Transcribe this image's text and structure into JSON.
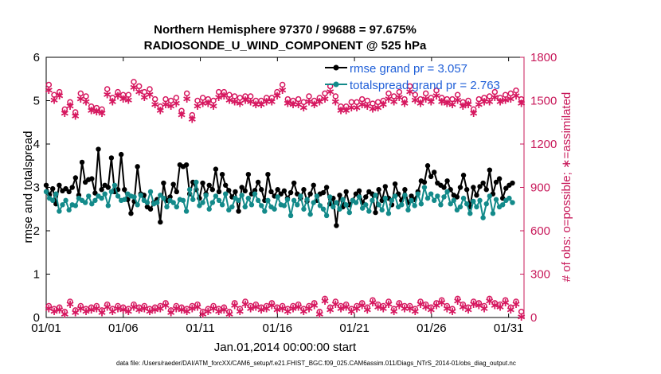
{
  "chart_data": {
    "type": "line",
    "title_line1": "Northern Hemisphere 97370 / 99688 = 97.675%",
    "title_line2": "RADIOSONDE_U_WIND_COMPONENT @ 525 hPa",
    "xlabel": "Jan.01,2014 00:00:00 start",
    "ylabel_left": "rmse and totalspread",
    "ylabel_right": "# of obs: o=possible; ∗=assimilated",
    "x_tick_labels": [
      "01/01",
      "01/06",
      "01/11",
      "01/16",
      "01/21",
      "01/26",
      "01/31"
    ],
    "x_tick_days": [
      1,
      6,
      11,
      16,
      21,
      26,
      31
    ],
    "xlim": [
      1,
      32
    ],
    "ylim_left": [
      0,
      6
    ],
    "yticks_left": [
      "0",
      "1",
      "2",
      "3",
      "4",
      "5",
      "6"
    ],
    "ylim_right": [
      0,
      1800
    ],
    "yticks_right": [
      "0",
      "300",
      "600",
      "900",
      "1200",
      "1500",
      "1800"
    ],
    "legend": [
      "rmse grand pr = 3.057",
      "totalspread grand pr = 2.763"
    ],
    "footnote": "data file: /Users/raeder/DAI/ATM_forcXX/CAM6_setup/f.e21.FHIST_BGC.f09_025.CAM6assim.011/Diags_NTrS_2014-01/obs_diag_output.nc",
    "colors": {
      "rmse": "#000000",
      "spread": "#138a8a",
      "obs": "#d6175f",
      "legend_text": "#1f5fd8",
      "right_axis": "#c8195a"
    },
    "series": [
      {
        "name": "rmse",
        "values": [
          3.05,
          2.83,
          2.97,
          2.62,
          3.05,
          2.92,
          2.97,
          2.9,
          3.0,
          3.22,
          2.82,
          3.58,
          3.12,
          3.18,
          3.2,
          2.87,
          3.88,
          2.95,
          3.05,
          3.0,
          3.68,
          2.9,
          2.95,
          3.76,
          2.95,
          2.72,
          2.4,
          2.68,
          3.48,
          2.85,
          2.82,
          2.55,
          2.5,
          2.65,
          2.72,
          2.2,
          3.1,
          2.7,
          2.78,
          3.07,
          2.9,
          3.52,
          3.48,
          3.52,
          2.85,
          3.12,
          2.95,
          2.75,
          3.1,
          2.85,
          3.05,
          2.95,
          3.42,
          2.9,
          3.3,
          3.05,
          2.93,
          2.78,
          2.9,
          2.45,
          3.0,
          2.92,
          3.3,
          2.85,
          2.93,
          3.12,
          2.95,
          2.7,
          3.3,
          2.9,
          2.8,
          2.95,
          2.85,
          2.92,
          2.75,
          2.88,
          3.1,
          2.85,
          2.75,
          2.95,
          2.68,
          2.85,
          3.05,
          2.7,
          2.85,
          2.88,
          3.0,
          2.62,
          2.75,
          2.12,
          2.82,
          2.55,
          2.9,
          2.6,
          2.7,
          2.85,
          2.92,
          2.65,
          2.78,
          2.9,
          2.85,
          2.42,
          2.95,
          2.7,
          3.02,
          2.75,
          2.6,
          3.08,
          2.85,
          2.7,
          2.95,
          2.65,
          2.8,
          2.72,
          2.9,
          3.15,
          3.12,
          3.5,
          3.25,
          3.35,
          3.1,
          3.05,
          3.0,
          3.15,
          2.95,
          2.82,
          2.78,
          3.0,
          3.28,
          2.95,
          2.55,
          3.0,
          2.82,
          3.02,
          3.1,
          2.95,
          3.4,
          2.85,
          3.12,
          3.2,
          2.75,
          2.98,
          3.05,
          3.1
        ]
      },
      {
        "name": "totalspread",
        "values": [
          2.9,
          2.75,
          2.7,
          2.85,
          2.45,
          2.6,
          2.7,
          2.48,
          2.6,
          2.58,
          2.75,
          2.7,
          2.65,
          2.8,
          2.62,
          2.7,
          2.8,
          2.75,
          2.85,
          2.58,
          2.9,
          3.05,
          2.8,
          2.7,
          2.72,
          2.85,
          2.8,
          2.78,
          2.6,
          2.82,
          2.7,
          2.65,
          2.9,
          2.62,
          2.65,
          2.82,
          2.75,
          2.55,
          2.7,
          2.65,
          2.55,
          2.72,
          2.7,
          2.45,
          2.95,
          2.72,
          3.12,
          2.58,
          2.65,
          2.82,
          2.5,
          2.65,
          2.8,
          2.7,
          2.6,
          2.85,
          2.48,
          2.55,
          2.75,
          2.7,
          2.82,
          2.55,
          2.75,
          2.6,
          2.85,
          2.7,
          2.58,
          2.45,
          2.7,
          2.55,
          2.5,
          2.78,
          2.6,
          2.58,
          2.72,
          2.35,
          2.7,
          2.6,
          2.8,
          2.5,
          2.72,
          2.38,
          2.65,
          2.8,
          2.58,
          2.5,
          2.35,
          2.78,
          2.55,
          2.65,
          2.5,
          2.72,
          2.6,
          2.42,
          2.7,
          2.65,
          2.78,
          2.52,
          2.6,
          2.45,
          2.7,
          2.82,
          2.6,
          2.48,
          2.75,
          2.4,
          2.7,
          2.8,
          2.55,
          2.6,
          2.82,
          2.48,
          2.7,
          2.58,
          2.85,
          2.62,
          3.0,
          2.75,
          2.85,
          2.7,
          2.8,
          2.6,
          2.78,
          2.9,
          2.62,
          2.7,
          2.48,
          2.55,
          2.75,
          2.62,
          2.4,
          2.68,
          2.55,
          2.7,
          2.3,
          2.62,
          2.8,
          2.4,
          2.72,
          2.55,
          2.6,
          2.7,
          2.75,
          2.65
        ]
      },
      {
        "name": "obs_possible",
        "values": [
          1610,
          1540,
          1560,
          1440,
          1490,
          1420,
          1550,
          1530,
          1460,
          1450,
          1440,
          1580,
          1520,
          1560,
          1540,
          1540,
          1630,
          1600,
          1560,
          1580,
          1510,
          1460,
          1510,
          1500,
          1520,
          1430,
          1550,
          1400,
          1500,
          1520,
          1510,
          1500,
          1560,
          1560,
          1540,
          1530,
          1520,
          1530,
          1530,
          1500,
          1500,
          1520,
          1520,
          1560,
          1610,
          1510,
          1500,
          1510,
          1490,
          1530,
          1500,
          1520,
          1550,
          1600,
          1530,
          1460,
          1460,
          1490,
          1490,
          1510,
          1500,
          1480,
          1490,
          1500,
          1550,
          1530,
          1560,
          1510,
          1600,
          1540,
          1510,
          1550,
          1520,
          1570,
          1520,
          1510,
          1510,
          1540,
          1490,
          1500,
          1440,
          1510,
          1520,
          1530,
          1560,
          1520,
          1540,
          1550,
          1570,
          1510
        ],
        "note": "symbol o, ~2 samples per day"
      },
      {
        "name": "obs_assimilated",
        "values": [
          1580,
          1510,
          1540,
          1420,
          1470,
          1400,
          1520,
          1500,
          1440,
          1430,
          1420,
          1550,
          1500,
          1540,
          1520,
          1510,
          1600,
          1570,
          1530,
          1550,
          1480,
          1440,
          1480,
          1470,
          1490,
          1410,
          1520,
          1380,
          1470,
          1490,
          1490,
          1470,
          1530,
          1540,
          1510,
          1500,
          1490,
          1510,
          1500,
          1480,
          1480,
          1500,
          1500,
          1540,
          1580,
          1490,
          1480,
          1480,
          1460,
          1500,
          1480,
          1500,
          1520,
          1570,
          1500,
          1440,
          1440,
          1460,
          1460,
          1480,
          1470,
          1450,
          1460,
          1480,
          1520,
          1500,
          1530,
          1490,
          1570,
          1510,
          1490,
          1520,
          1500,
          1540,
          1500,
          1490,
          1480,
          1510,
          1470,
          1480,
          1420,
          1480,
          1500,
          1500,
          1530,
          1500,
          1510,
          1520,
          1540,
          1490
        ],
        "note": "symbol *, ~2 samples per day"
      },
      {
        "name": "obs_low_possible",
        "values": [
          80,
          60,
          70,
          40,
          110,
          50,
          80,
          60,
          70,
          80,
          50,
          90,
          60,
          80,
          70,
          60,
          90,
          70,
          80,
          60,
          70,
          80,
          100,
          50,
          80,
          70,
          60,
          80,
          90,
          40,
          60,
          80,
          60,
          70,
          40,
          100,
          60,
          110,
          80,
          90,
          70,
          80,
          100,
          70,
          80,
          60,
          80,
          90,
          60,
          80,
          100,
          40,
          130,
          70,
          110,
          80,
          90,
          60,
          80,
          100,
          70,
          120,
          90,
          80,
          110,
          60,
          100,
          80,
          80,
          60,
          110,
          90,
          70,
          100,
          120,
          80,
          60,
          130,
          90,
          70,
          110,
          100,
          80,
          130,
          100,
          90,
          120,
          70,
          110,
          40
        ],
        "note": "symbol o near zero"
      },
      {
        "name": "obs_low_assimilated",
        "values": [
          70,
          50,
          60,
          30,
          100,
          40,
          70,
          50,
          60,
          70,
          40,
          80,
          50,
          70,
          60,
          50,
          80,
          60,
          70,
          50,
          60,
          70,
          90,
          40,
          70,
          60,
          50,
          70,
          80,
          30,
          50,
          70,
          50,
          60,
          30,
          90,
          50,
          100,
          70,
          80,
          60,
          70,
          90,
          60,
          70,
          50,
          70,
          80,
          50,
          70,
          90,
          30,
          120,
          60,
          100,
          70,
          80,
          50,
          70,
          90,
          60,
          110,
          80,
          70,
          100,
          50,
          90,
          70,
          70,
          50,
          100,
          80,
          60,
          90,
          110,
          70,
          50,
          120,
          80,
          60,
          100,
          90,
          70,
          120,
          90,
          80,
          110,
          60,
          100,
          10
        ],
        "note": "symbol * near zero"
      }
    ]
  }
}
